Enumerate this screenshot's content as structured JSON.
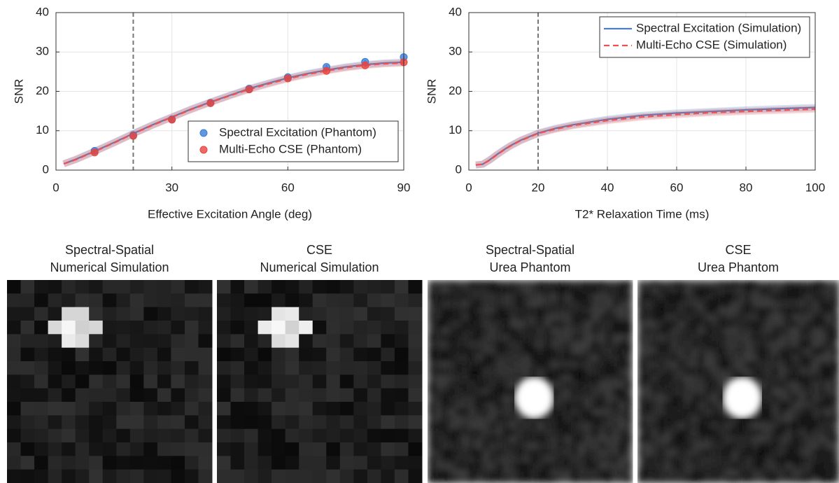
{
  "chart_data": [
    {
      "type": "line",
      "xlabel": "Effective Excitation Angle (deg)",
      "ylabel": "SNR",
      "xlim": [
        0,
        90
      ],
      "xticks": [
        0,
        30,
        60,
        90
      ],
      "ylim": [
        0,
        40
      ],
      "yticks": [
        0,
        10,
        20,
        30,
        40
      ],
      "grid": true,
      "vline": 20,
      "legend": "lower right",
      "series": [
        {
          "color": "#4a7fc1",
          "style": "solid",
          "x": [
            2,
            5,
            10,
            15,
            20,
            25,
            30,
            35,
            40,
            45,
            50,
            55,
            60,
            65,
            70,
            75,
            80,
            85,
            90
          ],
          "values": [
            1.6,
            2.7,
            4.8,
            7.0,
            9.3,
            11.5,
            13.5,
            15.5,
            17.3,
            19.0,
            20.7,
            22.1,
            23.4,
            24.5,
            25.4,
            26.2,
            26.8,
            27.2,
            27.4
          ]
        },
        {
          "color": "#f05050",
          "style": "dashed",
          "x": [
            2,
            5,
            10,
            15,
            20,
            25,
            30,
            35,
            40,
            45,
            50,
            55,
            60,
            65,
            70,
            75,
            80,
            85,
            90
          ],
          "values": [
            1.6,
            2.6,
            4.7,
            6.9,
            9.2,
            11.4,
            13.4,
            15.4,
            17.2,
            18.9,
            20.5,
            21.9,
            23.2,
            24.3,
            25.2,
            26.0,
            26.6,
            27.0,
            27.2
          ]
        },
        {
          "name": "Spectral Excitation (Phantom)",
          "color": "#3b7dd8",
          "marker": "o",
          "x": [
            10,
            20,
            30,
            40,
            50,
            60,
            70,
            80,
            90
          ],
          "values": [
            4.9,
            8.9,
            12.9,
            17.1,
            20.7,
            23.6,
            26.2,
            27.5,
            28.7
          ],
          "errors": [
            0.4,
            0.4,
            0.4,
            0.4,
            0.4,
            0.4,
            0.5,
            0.5,
            0.5
          ]
        },
        {
          "name": "Multi-Echo CSE (Phantom)",
          "color": "#e8453c",
          "marker": "o",
          "x": [
            10,
            20,
            30,
            40,
            50,
            60,
            70,
            80,
            90
          ],
          "values": [
            4.5,
            8.7,
            12.8,
            17.0,
            20.5,
            23.3,
            25.2,
            26.6,
            27.4
          ],
          "errors": [
            0.4,
            0.4,
            0.4,
            0.4,
            0.4,
            0.4,
            0.5,
            0.5,
            0.5
          ]
        }
      ]
    },
    {
      "type": "line",
      "xlabel": "T2* Relaxation Time (ms)",
      "ylabel": "SNR",
      "xlim": [
        0,
        100
      ],
      "xticks": [
        0,
        20,
        40,
        60,
        80,
        100
      ],
      "ylim": [
        0,
        40
      ],
      "yticks": [
        0,
        10,
        20,
        30,
        40
      ],
      "grid": true,
      "vline": 20,
      "legend": "upper right",
      "series": [
        {
          "name": "Spectral Excitation (Simulation)",
          "color": "#4a7fc1",
          "style": "solid",
          "x": [
            2,
            4,
            6,
            8,
            10,
            12,
            15,
            20,
            25,
            30,
            40,
            50,
            60,
            70,
            80,
            90,
            100
          ],
          "values": [
            1.3,
            1.5,
            2.6,
            3.9,
            5.1,
            6.2,
            7.6,
            9.4,
            10.6,
            11.5,
            12.9,
            13.9,
            14.5,
            14.9,
            15.3,
            15.6,
            15.9
          ]
        },
        {
          "name": "Multi-Echo CSE (Simulation)",
          "color": "#f05050",
          "style": "dashed",
          "x": [
            2,
            4,
            6,
            8,
            10,
            12,
            15,
            20,
            25,
            30,
            40,
            50,
            60,
            70,
            80,
            90,
            100
          ],
          "values": [
            1.3,
            1.5,
            2.5,
            3.8,
            5.0,
            6.1,
            7.5,
            9.3,
            10.4,
            11.3,
            12.6,
            13.5,
            14.1,
            14.6,
            14.9,
            15.2,
            15.5
          ]
        }
      ]
    }
  ],
  "images": [
    {
      "title": [
        "Spectral-Spatial",
        "Numerical Simulation"
      ],
      "color": "#2f5d95"
    },
    {
      "title": [
        "CSE",
        "Numerical Simulation"
      ],
      "color": "#e52020"
    },
    {
      "title": [
        "Spectral-Spatial",
        "Urea Phantom"
      ],
      "color": "#2f5d95"
    },
    {
      "title": [
        "CSE",
        "Urea Phantom"
      ],
      "color": "#e52020"
    }
  ]
}
